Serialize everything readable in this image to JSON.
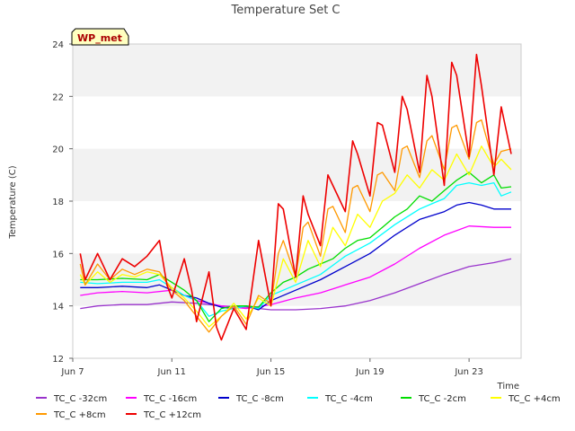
{
  "chart_data": {
    "type": "line",
    "title": "Temperature Set C",
    "xlabel": "Time",
    "ylabel": "Temperature (C)",
    "badge": "WP_met",
    "xlim": [
      7,
      25.1
    ],
    "ylim": [
      12,
      24
    ],
    "x_ticks": [
      {
        "v": 7,
        "label": "Jun 7"
      },
      {
        "v": 11,
        "label": "Jun 11"
      },
      {
        "v": 15,
        "label": "Jun 15"
      },
      {
        "v": 19,
        "label": "Jun 19"
      },
      {
        "v": 23,
        "label": "Jun 23"
      }
    ],
    "y_ticks": [
      12,
      14,
      16,
      18,
      20,
      22,
      24
    ],
    "grid": "horizontal bands",
    "legend_position": "bottom",
    "x_unit": "day of June",
    "series": [
      {
        "name": "TC_C -32cm",
        "color": "#9933cc",
        "x": [
          7.3,
          8,
          9,
          10,
          11,
          12,
          13,
          14,
          15,
          16,
          17,
          18,
          19,
          20,
          21,
          22,
          23,
          24,
          24.7
        ],
        "y": [
          13.9,
          14.0,
          14.05,
          14.05,
          14.15,
          14.1,
          14.0,
          13.95,
          13.85,
          13.85,
          13.9,
          14.0,
          14.2,
          14.5,
          14.85,
          15.2,
          15.5,
          15.65,
          15.8
        ]
      },
      {
        "name": "TC_C -16cm",
        "color": "#ff00ff",
        "x": [
          7.3,
          8,
          9,
          10,
          11,
          11.5,
          12,
          12.5,
          13,
          14,
          15,
          16,
          17,
          18,
          19,
          20,
          21,
          22,
          23,
          24,
          24.7
        ],
        "y": [
          14.4,
          14.5,
          14.55,
          14.5,
          14.6,
          14.4,
          14.2,
          14.1,
          14.0,
          13.9,
          14.05,
          14.3,
          14.5,
          14.8,
          15.1,
          15.6,
          16.2,
          16.7,
          17.05,
          17.0,
          17.0
        ]
      },
      {
        "name": "TC_C -8cm",
        "color": "#0000cc",
        "x": [
          7.3,
          8,
          9,
          10,
          10.5,
          11,
          11.5,
          12,
          12.5,
          13,
          13.5,
          14,
          14.5,
          15,
          16,
          17,
          18,
          19,
          20,
          21,
          22,
          22.5,
          23,
          23.5,
          24,
          24.7
        ],
        "y": [
          14.7,
          14.7,
          14.75,
          14.7,
          14.8,
          14.6,
          14.4,
          14.3,
          14.1,
          13.95,
          13.9,
          14.0,
          13.85,
          14.2,
          14.6,
          15.0,
          15.5,
          16.0,
          16.7,
          17.3,
          17.6,
          17.85,
          17.95,
          17.85,
          17.7,
          17.7
        ]
      },
      {
        "name": "TC_C -4cm",
        "color": "#00ffff",
        "x": [
          7.3,
          8,
          9,
          10,
          10.5,
          11,
          11.5,
          12,
          12.5,
          13,
          13.5,
          14,
          14.5,
          15,
          15.5,
          16,
          17,
          18,
          19,
          20,
          21,
          21.5,
          22,
          22.5,
          23,
          23.5,
          24,
          24.3,
          24.7
        ],
        "y": [
          14.9,
          14.85,
          14.9,
          14.9,
          15.0,
          14.7,
          14.4,
          14.2,
          13.6,
          13.8,
          13.9,
          14.0,
          13.9,
          14.4,
          14.6,
          14.8,
          15.2,
          15.9,
          16.4,
          17.1,
          17.7,
          17.9,
          18.1,
          18.6,
          18.7,
          18.6,
          18.7,
          18.2,
          18.35
        ]
      },
      {
        "name": "TC_C -2cm",
        "color": "#00dd00",
        "x": [
          7.3,
          8,
          9,
          10,
          10.5,
          11,
          11.5,
          12,
          12.5,
          13,
          13.5,
          14,
          14.5,
          15,
          15.5,
          16,
          16.5,
          17,
          17.5,
          18,
          18.5,
          19,
          19.5,
          20,
          20.5,
          21,
          21.5,
          22,
          22.5,
          23,
          23.5,
          24,
          24.3,
          24.7
        ],
        "y": [
          15.0,
          15.0,
          15.05,
          15.0,
          15.2,
          14.9,
          14.6,
          14.2,
          13.4,
          13.9,
          14.0,
          14.0,
          13.95,
          14.5,
          14.9,
          15.1,
          15.4,
          15.6,
          15.8,
          16.2,
          16.5,
          16.6,
          17.0,
          17.4,
          17.7,
          18.2,
          18.0,
          18.4,
          18.8,
          19.1,
          18.7,
          19.0,
          18.5,
          18.55
        ]
      },
      {
        "name": "TC_C +4cm",
        "color": "#ffff00",
        "x": [
          7.3,
          7.5,
          8,
          8.5,
          9,
          9.5,
          10,
          10.5,
          11,
          11.5,
          12,
          12.5,
          13,
          13.5,
          14,
          14.5,
          15,
          15.5,
          16,
          16.5,
          17,
          17.5,
          18,
          18.5,
          19,
          19.5,
          20,
          20.5,
          21,
          21.5,
          22,
          22.5,
          23,
          23.5,
          24,
          24.3,
          24.7
        ],
        "y": [
          15.2,
          14.8,
          15.3,
          14.9,
          15.2,
          15.1,
          15.3,
          15.2,
          14.7,
          14.3,
          13.8,
          13.2,
          13.6,
          14.1,
          13.5,
          14.3,
          14.0,
          15.8,
          14.9,
          16.5,
          15.5,
          17.0,
          16.3,
          17.5,
          17.0,
          18.0,
          18.3,
          19.0,
          18.5,
          19.2,
          18.8,
          19.8,
          19.0,
          20.1,
          19.3,
          19.6,
          19.2
        ]
      },
      {
        "name": "TC_C +8cm",
        "color": "#ff9900",
        "x": [
          7.3,
          7.5,
          8,
          8.5,
          9,
          9.5,
          10,
          10.5,
          11,
          11.5,
          12,
          12.5,
          13,
          13.5,
          14,
          14.5,
          15,
          15.3,
          15.5,
          16,
          16.3,
          16.5,
          17,
          17.3,
          17.5,
          18,
          18.3,
          18.5,
          19,
          19.3,
          19.5,
          20,
          20.3,
          20.5,
          21,
          21.3,
          21.5,
          22,
          22.3,
          22.5,
          23,
          23.3,
          23.5,
          24,
          24.3,
          24.7
        ],
        "y": [
          15.6,
          14.8,
          15.6,
          15.0,
          15.4,
          15.2,
          15.4,
          15.3,
          14.6,
          14.2,
          13.6,
          13.0,
          13.6,
          14.0,
          13.3,
          14.4,
          14.1,
          16.0,
          16.5,
          15.1,
          17.0,
          17.2,
          15.9,
          17.7,
          17.8,
          16.8,
          18.5,
          18.6,
          17.6,
          19.0,
          19.1,
          18.4,
          20.0,
          20.1,
          18.9,
          20.3,
          20.5,
          19.2,
          20.8,
          20.9,
          19.6,
          21.0,
          21.1,
          19.4,
          19.9,
          20.0
        ]
      },
      {
        "name": "TC_C +12cm",
        "color": "#ee0000",
        "x": [
          7.3,
          7.5,
          8,
          8.5,
          9,
          9.5,
          10,
          10.5,
          10.8,
          11,
          11.5,
          11.8,
          12,
          12.5,
          12.8,
          13,
          13.5,
          14,
          14.5,
          15,
          15.3,
          15.5,
          16,
          16.3,
          16.5,
          17,
          17.3,
          17.5,
          18,
          18.3,
          18.5,
          19,
          19.3,
          19.5,
          20,
          20.3,
          20.5,
          21,
          21.3,
          21.5,
          22,
          22.3,
          22.5,
          23,
          23.3,
          23.5,
          24,
          24.3,
          24.7
        ],
        "y": [
          16.0,
          15.0,
          16.0,
          15.0,
          15.8,
          15.5,
          15.9,
          16.5,
          14.8,
          14.3,
          15.8,
          14.6,
          13.4,
          15.3,
          13.2,
          12.7,
          13.9,
          13.1,
          16.5,
          14.0,
          17.9,
          17.7,
          15.1,
          18.2,
          17.5,
          16.3,
          19.0,
          18.6,
          17.6,
          20.3,
          19.8,
          18.2,
          21.0,
          20.9,
          19.1,
          22.0,
          21.5,
          19.1,
          22.8,
          22.0,
          18.6,
          23.3,
          22.8,
          19.7,
          23.6,
          22.4,
          19.0,
          21.6,
          19.8
        ]
      }
    ]
  }
}
